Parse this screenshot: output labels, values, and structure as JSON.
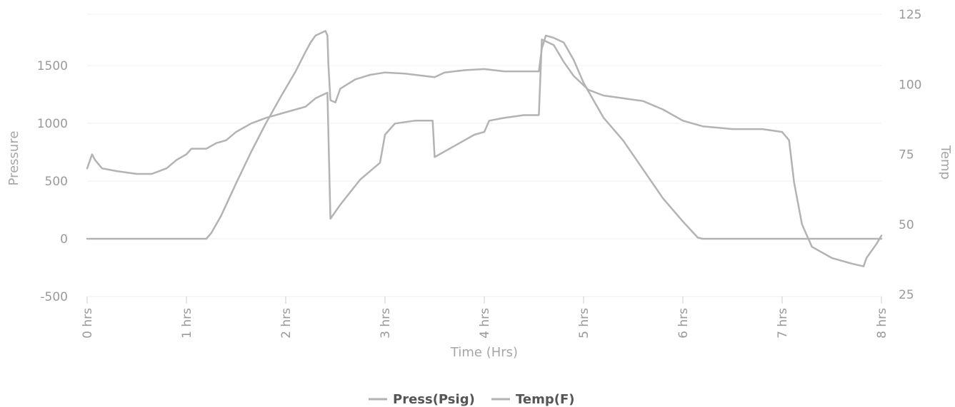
{
  "chart_data": {
    "type": "line",
    "title": "",
    "xlabel": "Time (Hrs)",
    "ylabel_left": "Pressure",
    "ylabel_right": "Temp",
    "xlim": [
      0,
      8
    ],
    "ylim_left": [
      -500,
      1800
    ],
    "ylim_right": [
      25,
      125
    ],
    "x_ticks": [
      0,
      1,
      2,
      3,
      4,
      5,
      6,
      7,
      8
    ],
    "x_tick_labels": [
      "0 hrs",
      "1 hrs",
      "2 hrs",
      "3 hrs",
      "4 hrs",
      "5 hrs",
      "6 hrs",
      "7 hrs",
      "8 hrs"
    ],
    "y_left_ticks": [
      -500,
      0,
      500,
      1000,
      1500
    ],
    "y_left_tick_labels": [
      "-500",
      "0",
      "500",
      "1000",
      "1500"
    ],
    "y_right_ticks": [
      25,
      50,
      75,
      100,
      125
    ],
    "y_right_tick_labels": [
      "25",
      "50",
      "75",
      "100",
      "125"
    ],
    "grid": true,
    "legend_position": "bottom-center",
    "colors": {
      "series": "#b3b3b3",
      "text": "#9a9a9a",
      "grid": "#efefef"
    },
    "series": [
      {
        "name": "Press(Psig)",
        "axis": "left",
        "color": "#b3b3b3",
        "points": [
          [
            0,
            0
          ],
          [
            0.5,
            0
          ],
          [
            1.0,
            0
          ],
          [
            1.2,
            0
          ],
          [
            1.25,
            50
          ],
          [
            1.35,
            200
          ],
          [
            1.5,
            480
          ],
          [
            1.65,
            750
          ],
          [
            1.8,
            1000
          ],
          [
            1.95,
            1230
          ],
          [
            2.1,
            1450
          ],
          [
            2.2,
            1620
          ],
          [
            2.25,
            1700
          ],
          [
            2.3,
            1760
          ],
          [
            2.35,
            1780
          ],
          [
            2.4,
            1800
          ],
          [
            2.42,
            1760
          ],
          [
            2.43,
            1500
          ],
          [
            2.45,
            1200
          ],
          [
            2.5,
            1180
          ],
          [
            2.55,
            1300
          ],
          [
            2.7,
            1380
          ],
          [
            2.85,
            1420
          ],
          [
            3.0,
            1440
          ],
          [
            3.2,
            1430
          ],
          [
            3.4,
            1410
          ],
          [
            3.5,
            1400
          ],
          [
            3.6,
            1440
          ],
          [
            3.8,
            1460
          ],
          [
            4.0,
            1470
          ],
          [
            4.2,
            1450
          ],
          [
            4.4,
            1450
          ],
          [
            4.55,
            1450
          ],
          [
            4.58,
            1650
          ],
          [
            4.62,
            1760
          ],
          [
            4.7,
            1740
          ],
          [
            4.8,
            1700
          ],
          [
            4.9,
            1550
          ],
          [
            5.0,
            1350
          ],
          [
            5.2,
            1050
          ],
          [
            5.4,
            850
          ],
          [
            5.6,
            600
          ],
          [
            5.8,
            350
          ],
          [
            6.0,
            150
          ],
          [
            6.15,
            10
          ],
          [
            6.2,
            0
          ],
          [
            6.5,
            0
          ],
          [
            7.0,
            0
          ],
          [
            7.5,
            0
          ],
          [
            8.0,
            0
          ]
        ]
      },
      {
        "name": "Temp(F)",
        "axis": "right",
        "color": "#b3b3b3",
        "points": [
          [
            0,
            70
          ],
          [
            0.02,
            72
          ],
          [
            0.05,
            75
          ],
          [
            0.08,
            73
          ],
          [
            0.15,
            70
          ],
          [
            0.3,
            69
          ],
          [
            0.5,
            68
          ],
          [
            0.65,
            68
          ],
          [
            0.8,
            70
          ],
          [
            0.9,
            73
          ],
          [
            1.0,
            75
          ],
          [
            1.05,
            77
          ],
          [
            1.2,
            77
          ],
          [
            1.3,
            79
          ],
          [
            1.4,
            80
          ],
          [
            1.5,
            83
          ],
          [
            1.65,
            86
          ],
          [
            1.8,
            88
          ],
          [
            2.0,
            90
          ],
          [
            2.2,
            92
          ],
          [
            2.3,
            95
          ],
          [
            2.42,
            97
          ],
          [
            2.45,
            52
          ],
          [
            2.55,
            57
          ],
          [
            2.75,
            66
          ],
          [
            2.95,
            72
          ],
          [
            3.0,
            82
          ],
          [
            3.1,
            86
          ],
          [
            3.3,
            87
          ],
          [
            3.48,
            87
          ],
          [
            3.5,
            74
          ],
          [
            3.7,
            78
          ],
          [
            3.9,
            82
          ],
          [
            4.0,
            83
          ],
          [
            4.05,
            87
          ],
          [
            4.2,
            88
          ],
          [
            4.4,
            89
          ],
          [
            4.55,
            89
          ],
          [
            4.58,
            116
          ],
          [
            4.7,
            114
          ],
          [
            4.8,
            108
          ],
          [
            4.9,
            103
          ],
          [
            5.05,
            98
          ],
          [
            5.2,
            96
          ],
          [
            5.4,
            95
          ],
          [
            5.6,
            94
          ],
          [
            5.8,
            91
          ],
          [
            6.0,
            87
          ],
          [
            6.2,
            85
          ],
          [
            6.5,
            84
          ],
          [
            6.8,
            84
          ],
          [
            7.0,
            83
          ],
          [
            7.07,
            80
          ],
          [
            7.12,
            65
          ],
          [
            7.2,
            50
          ],
          [
            7.3,
            42
          ],
          [
            7.5,
            38
          ],
          [
            7.7,
            36
          ],
          [
            7.82,
            35
          ],
          [
            7.85,
            38
          ],
          [
            7.95,
            43
          ],
          [
            8.0,
            46
          ]
        ]
      }
    ]
  }
}
